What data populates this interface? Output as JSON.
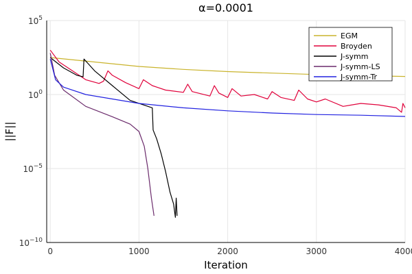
{
  "chart_data": {
    "type": "line",
    "title": "α=0.0001",
    "xlabel": "Iteration",
    "ylabel": "||F||",
    "xlim": [
      -40,
      4000
    ],
    "ylim_log10": [
      -10,
      5
    ],
    "y_scale": "log",
    "x_ticks": [
      0,
      1000,
      2000,
      3000,
      4000
    ],
    "y_ticks": [
      {
        "exp": 5,
        "base": "10",
        "sup": "5"
      },
      {
        "exp": 0,
        "base": "10",
        "sup": "0"
      },
      {
        "exp": -5,
        "base": "10",
        "sup": "−5"
      },
      {
        "exp": -10,
        "base": "10",
        "sup": "−10"
      }
    ],
    "grid": true,
    "legend_position": "top-right",
    "series": [
      {
        "name": "EGM",
        "color": "#c9b32b",
        "points": [
          [
            0,
            2.5
          ],
          [
            500,
            2.2
          ],
          [
            1000,
            1.9
          ],
          [
            1500,
            1.7
          ],
          [
            2000,
            1.55
          ],
          [
            2500,
            1.45
          ],
          [
            3000,
            1.35
          ],
          [
            3500,
            1.28
          ],
          [
            4000,
            1.22
          ]
        ]
      },
      {
        "name": "Broyden",
        "color": "#e0003a",
        "points": [
          [
            0,
            3.0
          ],
          [
            100,
            2.2
          ],
          [
            250,
            1.6
          ],
          [
            400,
            1.0
          ],
          [
            550,
            0.75
          ],
          [
            600,
            0.9
          ],
          [
            650,
            1.6
          ],
          [
            700,
            1.3
          ],
          [
            850,
            0.8
          ],
          [
            1000,
            0.4
          ],
          [
            1050,
            1.0
          ],
          [
            1150,
            0.6
          ],
          [
            1300,
            0.3
          ],
          [
            1500,
            0.15
          ],
          [
            1550,
            0.7
          ],
          [
            1600,
            0.2
          ],
          [
            1800,
            -0.1
          ],
          [
            1850,
            0.6
          ],
          [
            1900,
            0.1
          ],
          [
            2000,
            -0.2
          ],
          [
            2050,
            0.4
          ],
          [
            2150,
            -0.1
          ],
          [
            2300,
            0.0
          ],
          [
            2450,
            -0.3
          ],
          [
            2500,
            0.2
          ],
          [
            2600,
            -0.2
          ],
          [
            2750,
            -0.4
          ],
          [
            2800,
            0.3
          ],
          [
            2900,
            -0.3
          ],
          [
            3000,
            -0.5
          ],
          [
            3100,
            -0.3
          ],
          [
            3300,
            -0.8
          ],
          [
            3500,
            -0.6
          ],
          [
            3700,
            -0.7
          ],
          [
            3900,
            -0.9
          ],
          [
            3960,
            -1.2
          ],
          [
            3975,
            -0.6
          ],
          [
            4000,
            -0.9
          ]
        ]
      },
      {
        "name": "J-symm",
        "color": "#000000",
        "points": [
          [
            0,
            2.5
          ],
          [
            150,
            1.8
          ],
          [
            300,
            1.3
          ],
          [
            370,
            1.2
          ],
          [
            380,
            2.4
          ],
          [
            500,
            1.6
          ],
          [
            700,
            0.6
          ],
          [
            900,
            -0.4
          ],
          [
            1150,
            -0.9
          ],
          [
            1160,
            -2.4
          ],
          [
            1200,
            -3.0
          ],
          [
            1250,
            -4.0
          ],
          [
            1300,
            -5.2
          ],
          [
            1350,
            -6.6
          ],
          [
            1390,
            -7.4
          ],
          [
            1410,
            -8.3
          ],
          [
            1420,
            -7.0
          ],
          [
            1430,
            -8.2
          ]
        ]
      },
      {
        "name": "J-symm-LS",
        "color": "#6a2a6b",
        "points": [
          [
            0,
            2.8
          ],
          [
            50,
            1.3
          ],
          [
            150,
            0.3
          ],
          [
            400,
            -0.8
          ],
          [
            700,
            -1.5
          ],
          [
            900,
            -2.0
          ],
          [
            1000,
            -2.5
          ],
          [
            1060,
            -3.5
          ],
          [
            1100,
            -5.0
          ],
          [
            1140,
            -7.0
          ],
          [
            1170,
            -8.2
          ]
        ]
      },
      {
        "name": "J-symm-Tr",
        "color": "#2020e0",
        "points": [
          [
            0,
            2.4
          ],
          [
            60,
            1.0
          ],
          [
            150,
            0.5
          ],
          [
            400,
            0.0
          ],
          [
            700,
            -0.3
          ],
          [
            1000,
            -0.6
          ],
          [
            1500,
            -0.9
          ],
          [
            2000,
            -1.1
          ],
          [
            2500,
            -1.25
          ],
          [
            3000,
            -1.35
          ],
          [
            3500,
            -1.4
          ],
          [
            4000,
            -1.48
          ]
        ]
      }
    ]
  }
}
